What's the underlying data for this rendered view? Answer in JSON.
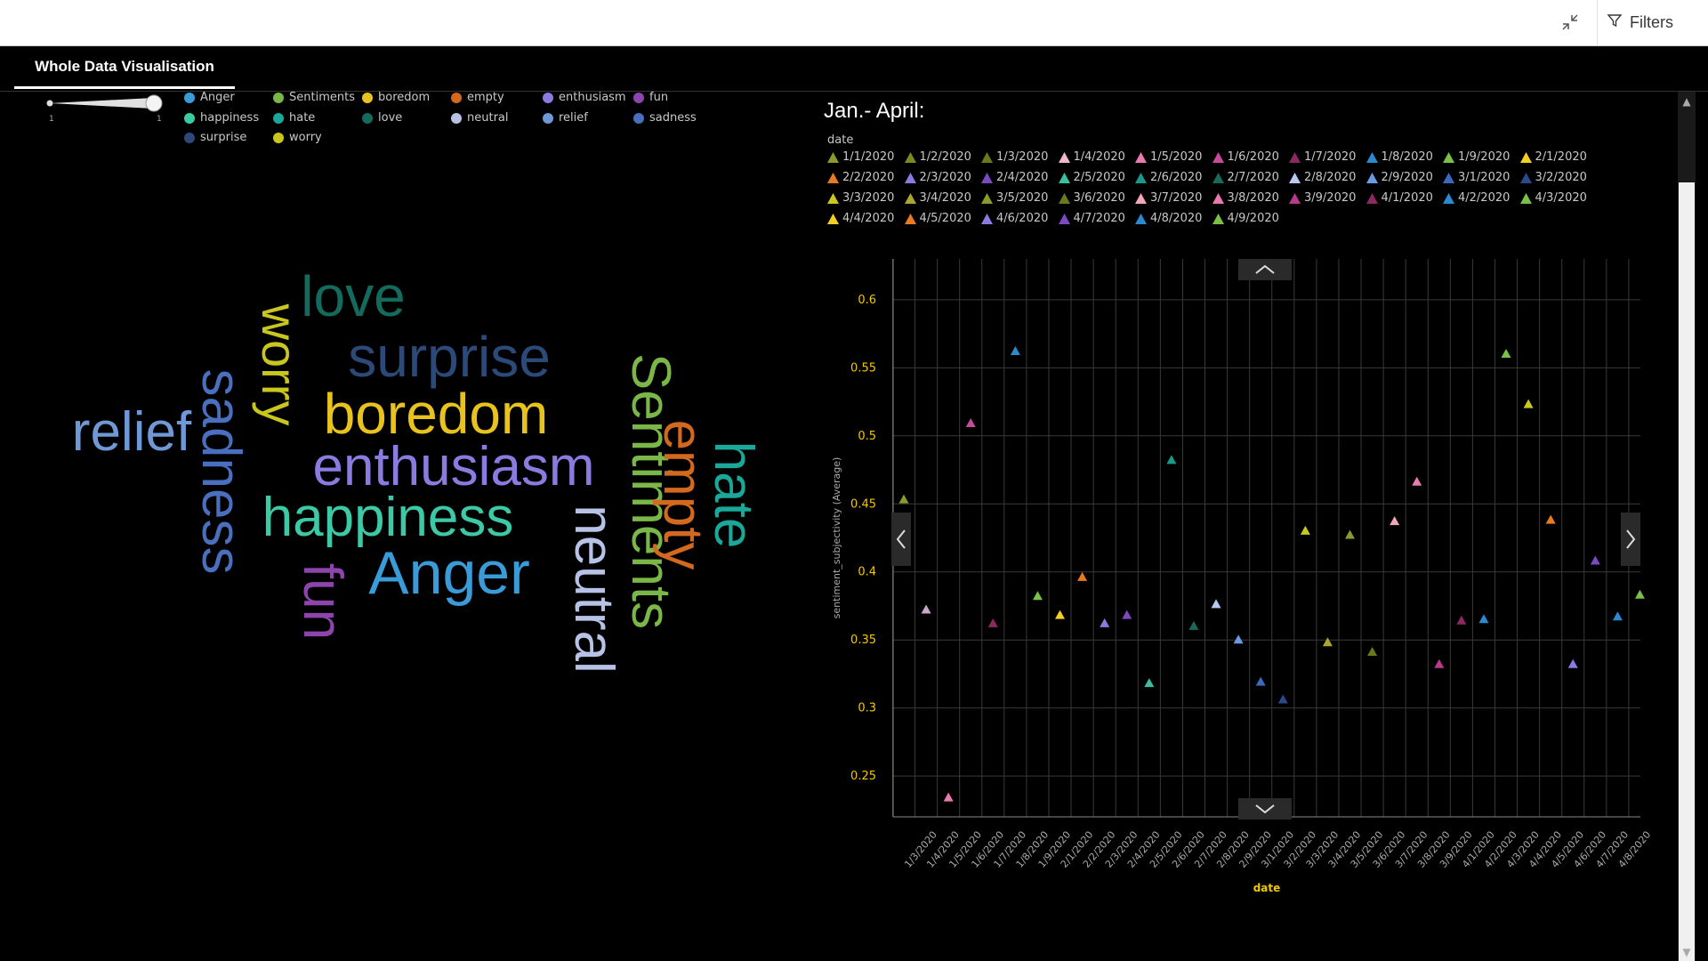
{
  "topbar": {
    "filters_label": "Filters"
  },
  "tabs": [
    {
      "label": "Whole Data Visualisation"
    }
  ],
  "slider": {
    "min_label": "1",
    "max_label": "1"
  },
  "left_legend": {
    "items": [
      {
        "label": "Anger",
        "color": "#3a9bd9"
      },
      {
        "label": "Sentiments",
        "color": "#7ab648"
      },
      {
        "label": "boredom",
        "color": "#e8c21d"
      },
      {
        "label": "empty",
        "color": "#d2691e"
      },
      {
        "label": "enthusiasm",
        "color": "#8a7be0"
      },
      {
        "label": "fun",
        "color": "#8e44ad"
      },
      {
        "label": "happiness",
        "color": "#3cc9a6"
      },
      {
        "label": "hate",
        "color": "#1aa89a"
      },
      {
        "label": "love",
        "color": "#136b5e"
      },
      {
        "label": "neutral",
        "color": "#b7c3e6"
      },
      {
        "label": "relief",
        "color": "#6f98d6"
      },
      {
        "label": "sadness",
        "color": "#4a6fbf"
      },
      {
        "label": "surprise",
        "color": "#2b4a7a"
      },
      {
        "label": "worry",
        "color": "#c9c71c"
      }
    ]
  },
  "wordcloud": {
    "words": [
      {
        "text": "love",
        "color": "#136b5e"
      },
      {
        "text": "surprise",
        "color": "#2b4a7a"
      },
      {
        "text": "worry",
        "color": "#c9c71c"
      },
      {
        "text": "boredom",
        "color": "#e8c21d"
      },
      {
        "text": "relief",
        "color": "#6f98d6"
      },
      {
        "text": "sadness",
        "color": "#4a6fbf"
      },
      {
        "text": "enthusiasm",
        "color": "#8a7be0"
      },
      {
        "text": "happiness",
        "color": "#3cc9a6"
      },
      {
        "text": "fun",
        "color": "#8e44ad"
      },
      {
        "text": "Anger",
        "color": "#3a9bd9"
      },
      {
        "text": "neutral",
        "color": "#b7c3e6"
      },
      {
        "text": "Sentiments",
        "color": "#7ab648"
      },
      {
        "text": "empty",
        "color": "#d2691e"
      },
      {
        "text": "hate",
        "color": "#1aa89a"
      }
    ]
  },
  "right_panel": {
    "title": "Jan.- April:",
    "legend_title": "date",
    "legend": [
      {
        "label": "1/1/2020",
        "color": "#8a9a2b"
      },
      {
        "label": "1/2/2020",
        "color": "#7a8a22"
      },
      {
        "label": "1/3/2020",
        "color": "#6a7a1a"
      },
      {
        "label": "1/4/2020",
        "color": "#f0b8c8"
      },
      {
        "label": "1/5/2020",
        "color": "#e87ab0"
      },
      {
        "label": "1/6/2020",
        "color": "#c84a9a"
      },
      {
        "label": "1/7/2020",
        "color": "#8a2a60"
      },
      {
        "label": "1/8/2020",
        "color": "#2a8ad0"
      },
      {
        "label": "1/9/2020",
        "color": "#7ac048"
      },
      {
        "label": "2/1/2020",
        "color": "#f0d020"
      },
      {
        "label": "2/2/2020",
        "color": "#e87a22"
      },
      {
        "label": "2/3/2020",
        "color": "#8a7be0"
      },
      {
        "label": "2/4/2020",
        "color": "#7a4ac0"
      },
      {
        "label": "2/5/2020",
        "color": "#3ac0a0"
      },
      {
        "label": "2/6/2020",
        "color": "#1a9a8a"
      },
      {
        "label": "2/7/2020",
        "color": "#1a6a5a"
      },
      {
        "label": "2/8/2020",
        "color": "#b8c8f0"
      },
      {
        "label": "2/9/2020",
        "color": "#6a9ae0"
      },
      {
        "label": "3/1/2020",
        "color": "#3a6ac0"
      },
      {
        "label": "3/2/2020",
        "color": "#2a4a8a"
      },
      {
        "label": "3/3/2020",
        "color": "#c8c820"
      },
      {
        "label": "3/4/2020",
        "color": "#a8a830"
      },
      {
        "label": "3/5/2020",
        "color": "#8a9a2b"
      },
      {
        "label": "3/6/2020",
        "color": "#6a7a1a"
      },
      {
        "label": "3/7/2020",
        "color": "#f0a8b8"
      },
      {
        "label": "3/8/2020",
        "color": "#e87ab0"
      },
      {
        "label": "3/9/2020",
        "color": "#b83a8a"
      },
      {
        "label": "4/1/2020",
        "color": "#8a2a60"
      },
      {
        "label": "4/2/2020",
        "color": "#2a8ad0"
      },
      {
        "label": "4/3/2020",
        "color": "#7ac048"
      },
      {
        "label": "4/4/2020",
        "color": "#f0d020"
      },
      {
        "label": "4/5/2020",
        "color": "#e87a22"
      },
      {
        "label": "4/6/2020",
        "color": "#8a7be0"
      },
      {
        "label": "4/7/2020",
        "color": "#7a4ac0"
      },
      {
        "label": "4/8/2020",
        "color": "#2a8ad0"
      },
      {
        "label": "4/9/2020",
        "color": "#7ac048"
      }
    ]
  },
  "chart_data": {
    "type": "scatter",
    "marker": "triangle",
    "xlabel": "date",
    "ylabel": "sentiment_subjectivity (Average)",
    "ylim": [
      0.22,
      0.63
    ],
    "yticks": [
      0.25,
      0.3,
      0.35,
      0.4,
      0.45,
      0.5,
      0.55,
      0.6
    ],
    "grid": true,
    "x_tick_labels": [
      "1/3/2020",
      "1/4/2020",
      "1/5/2020",
      "1/6/2020",
      "1/7/2020",
      "1/8/2020",
      "1/9/2020",
      "2/1/2020",
      "2/2/2020",
      "2/3/2020",
      "2/4/2020",
      "2/5/2020",
      "2/6/2020",
      "2/7/2020",
      "2/8/2020",
      "2/9/2020",
      "3/1/2020",
      "3/2/2020",
      "3/3/2020",
      "3/4/2020",
      "3/5/2020",
      "3/6/2020",
      "3/7/2020",
      "3/8/2020",
      "3/9/2020",
      "4/1/2020",
      "4/2/2020",
      "4/3/2020",
      "4/4/2020",
      "4/5/2020",
      "4/6/2020",
      "4/7/2020",
      "4/8/2020"
    ],
    "points": [
      {
        "x": "1/1/2020",
        "y": 0.453,
        "color": "#8a9a2b"
      },
      {
        "x": "1/2/2020",
        "y": 0.372,
        "color": "#c8a8c8"
      },
      {
        "x": "1/3/2020",
        "y": 0.234,
        "color": "#e87ab0"
      },
      {
        "x": "1/4/2020",
        "y": 0.509,
        "color": "#c84a9a"
      },
      {
        "x": "1/5/2020",
        "y": 0.362,
        "color": "#8a2a60"
      },
      {
        "x": "1/6/2020",
        "y": 0.562,
        "color": "#2a8ad0"
      },
      {
        "x": "1/7/2020",
        "y": 0.382,
        "color": "#7ac048"
      },
      {
        "x": "1/8/2020",
        "y": 0.368,
        "color": "#f0d020"
      },
      {
        "x": "1/9/2020",
        "y": 0.396,
        "color": "#e87a22"
      },
      {
        "x": "2/1/2020",
        "y": 0.362,
        "color": "#8a7be0"
      },
      {
        "x": "2/2/2020",
        "y": 0.368,
        "color": "#7a4ac0"
      },
      {
        "x": "2/3/2020",
        "y": 0.318,
        "color": "#3ac0a0"
      },
      {
        "x": "2/4/2020",
        "y": 0.482,
        "color": "#1a9a8a"
      },
      {
        "x": "2/5/2020",
        "y": 0.36,
        "color": "#1a6a5a"
      },
      {
        "x": "2/6/2020",
        "y": 0.376,
        "color": "#b8c8f0"
      },
      {
        "x": "2/7/2020",
        "y": 0.35,
        "color": "#6a9ae0"
      },
      {
        "x": "2/8/2020",
        "y": 0.319,
        "color": "#3a6ac0"
      },
      {
        "x": "2/9/2020",
        "y": 0.306,
        "color": "#2a4a8a"
      },
      {
        "x": "3/1/2020",
        "y": 0.43,
        "color": "#c8c820"
      },
      {
        "x": "3/2/2020",
        "y": 0.348,
        "color": "#a8a830"
      },
      {
        "x": "3/3/2020",
        "y": 0.427,
        "color": "#8a9a2b"
      },
      {
        "x": "3/4/2020",
        "y": 0.341,
        "color": "#6a7a1a"
      },
      {
        "x": "3/5/2020",
        "y": 0.437,
        "color": "#f0a8b8"
      },
      {
        "x": "3/6/2020",
        "y": 0.466,
        "color": "#e87ab0"
      },
      {
        "x": "3/7/2020",
        "y": 0.332,
        "color": "#b83a8a"
      },
      {
        "x": "3/8/2020",
        "y": 0.364,
        "color": "#8a2a60"
      },
      {
        "x": "3/9/2020",
        "y": 0.365,
        "color": "#2a8ad0"
      },
      {
        "x": "4/1/2020",
        "y": 0.56,
        "color": "#7ac048"
      },
      {
        "x": "4/2/2020",
        "y": 0.523,
        "color": "#c8c820"
      },
      {
        "x": "4/3/2020",
        "y": 0.438,
        "color": "#e87a22"
      },
      {
        "x": "4/4/2020",
        "y": 0.332,
        "color": "#8a7be0"
      },
      {
        "x": "4/5/2020",
        "y": 0.408,
        "color": "#7a4ac0"
      },
      {
        "x": "4/6/2020",
        "y": 0.367,
        "color": "#2a8ad0"
      },
      {
        "x": "4/7/2020",
        "y": 0.383,
        "color": "#7ac048"
      }
    ]
  }
}
